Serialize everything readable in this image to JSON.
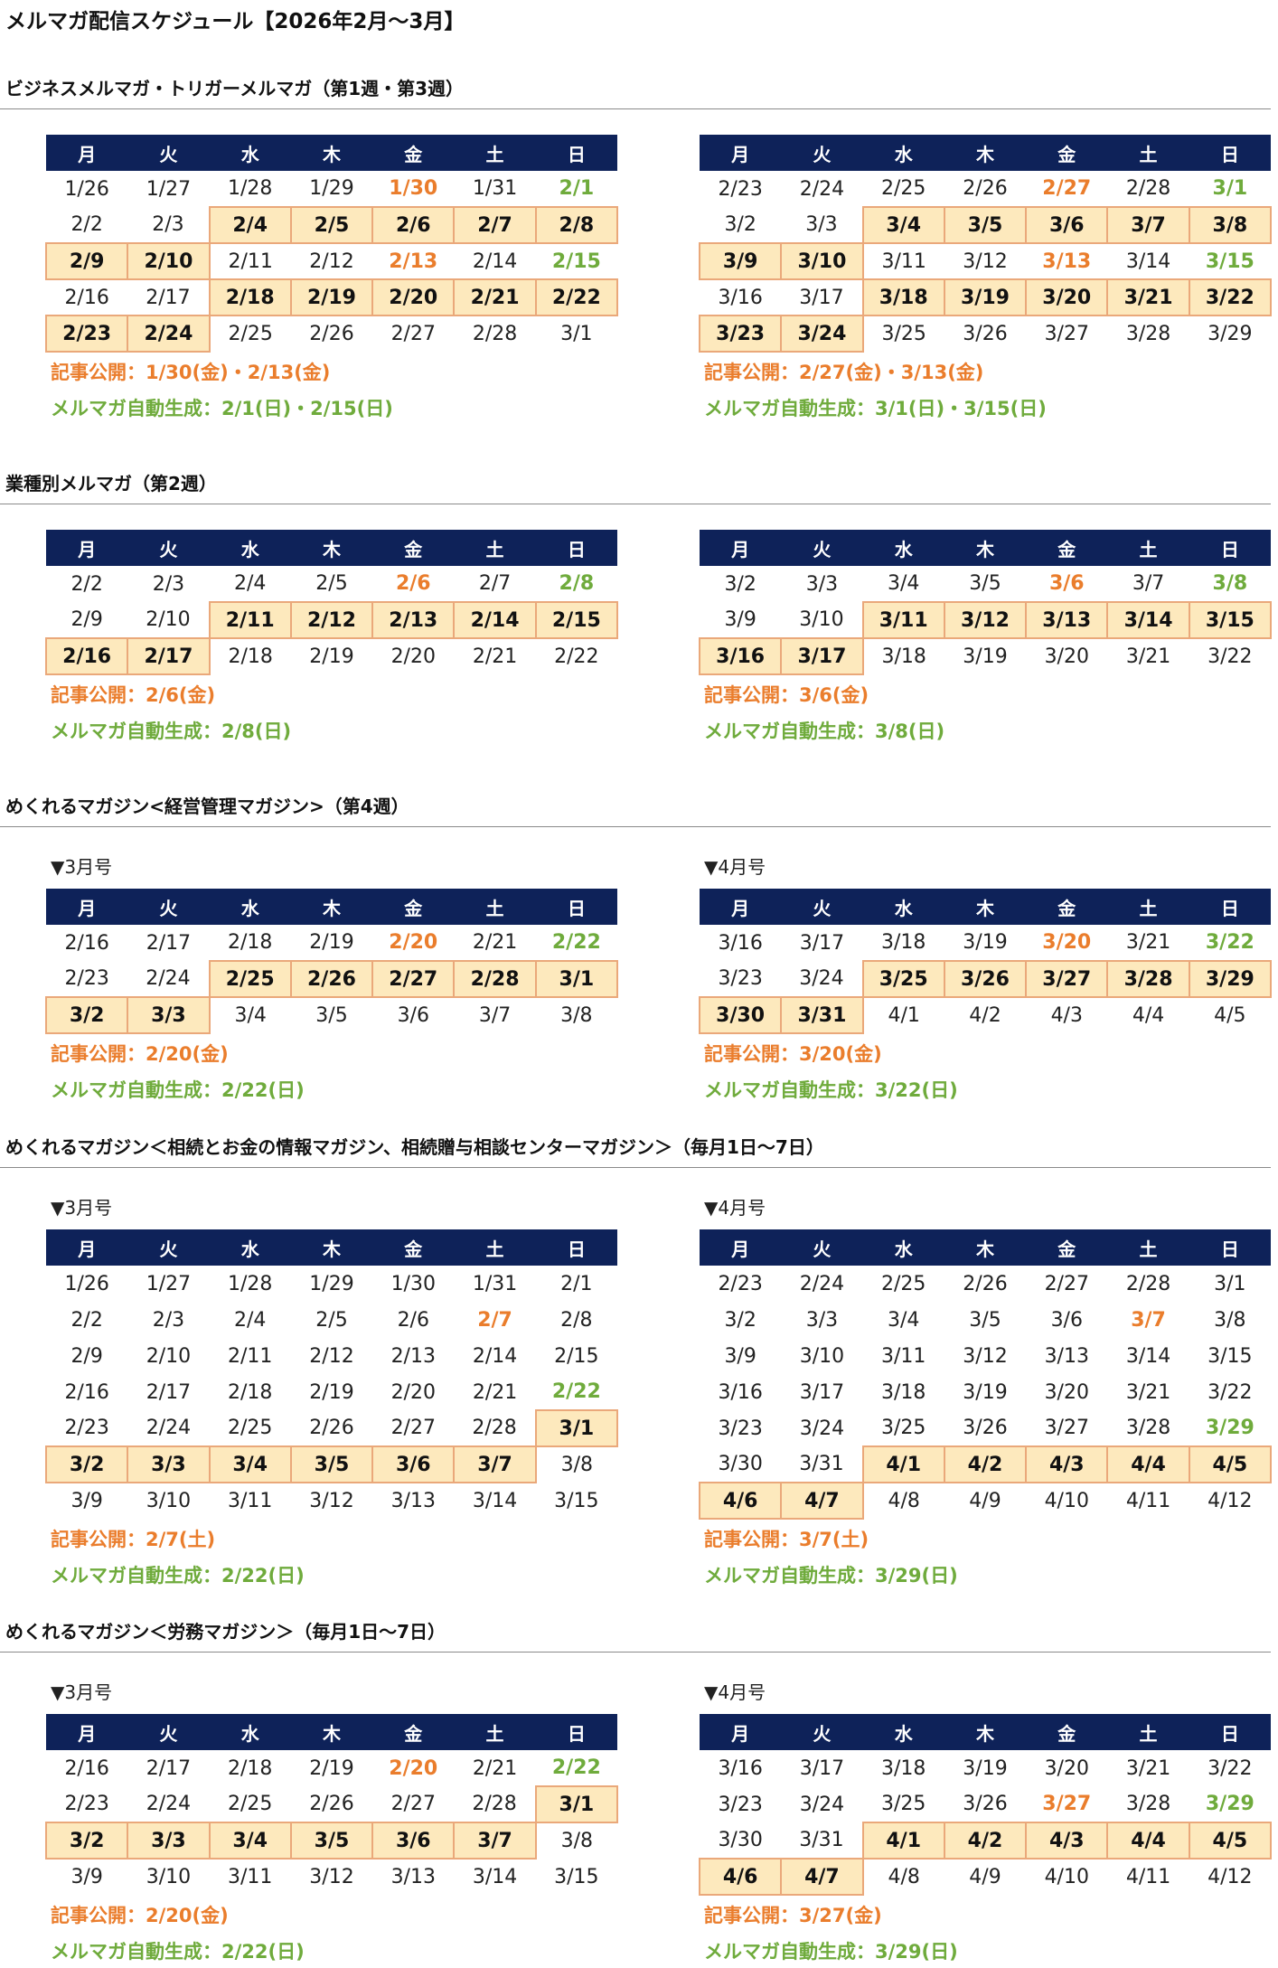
{
  "page_title": "メルマガ配信スケジュール【2026年2月～3月】",
  "weekday_headers": [
    "月",
    "火",
    "水",
    "木",
    "金",
    "土",
    "日"
  ],
  "colors": {
    "header_bg": "#0e2259",
    "highlight_bg": "#fde9bd",
    "highlight_border": "#eaa87a",
    "publish": "#ea7d2c",
    "generate": "#6fab3c"
  },
  "sections": [
    {
      "title": "ビジネスメルマガ・トリガーメルマガ（第1週・第3週）",
      "calendars": [
        {
          "label": "",
          "rows": [
            [
              "1/26",
              "1/27",
              "1/28",
              "1/29",
              "1/30",
              "1/31",
              "2/1"
            ],
            [
              "2/2",
              "2/3",
              "2/4",
              "2/5",
              "2/6",
              "2/7",
              "2/8"
            ],
            [
              "2/9",
              "2/10",
              "2/11",
              "2/12",
              "2/13",
              "2/14",
              "2/15"
            ],
            [
              "2/16",
              "2/17",
              "2/18",
              "2/19",
              "2/20",
              "2/21",
              "2/22"
            ],
            [
              "2/23",
              "2/24",
              "2/25",
              "2/26",
              "2/27",
              "2/28",
              "3/1"
            ]
          ],
          "highlighted": [
            "2/4",
            "2/5",
            "2/6",
            "2/7",
            "2/8",
            "2/9",
            "2/10",
            "2/18",
            "2/19",
            "2/20",
            "2/21",
            "2/22",
            "2/23",
            "2/24"
          ],
          "publish_dates": [
            "1/30",
            "2/13"
          ],
          "generate_dates": [
            "2/1",
            "2/15"
          ],
          "publish_note": "記事公開：1/30(金)・2/13(金)",
          "generate_note": "メルマガ自動生成：2/1(日)・2/15(日)"
        },
        {
          "label": "",
          "rows": [
            [
              "2/23",
              "2/24",
              "2/25",
              "2/26",
              "2/27",
              "2/28",
              "3/1"
            ],
            [
              "3/2",
              "3/3",
              "3/4",
              "3/5",
              "3/6",
              "3/7",
              "3/8"
            ],
            [
              "3/9",
              "3/10",
              "3/11",
              "3/12",
              "3/13",
              "3/14",
              "3/15"
            ],
            [
              "3/16",
              "3/17",
              "3/18",
              "3/19",
              "3/20",
              "3/21",
              "3/22"
            ],
            [
              "3/23",
              "3/24",
              "3/25",
              "3/26",
              "3/27",
              "3/28",
              "3/29"
            ]
          ],
          "highlighted": [
            "3/4",
            "3/5",
            "3/6",
            "3/7",
            "3/8",
            "3/9",
            "3/10",
            "3/18",
            "3/19",
            "3/20",
            "3/21",
            "3/22",
            "3/23",
            "3/24"
          ],
          "publish_dates": [
            "2/27",
            "3/13"
          ],
          "generate_dates": [
            "3/1",
            "3/15"
          ],
          "publish_note": "記事公開：2/27(金)・3/13(金)",
          "generate_note": "メルマガ自動生成：3/1(日)・3/15(日)"
        }
      ]
    },
    {
      "title": "業種別メルマガ（第2週）",
      "calendars": [
        {
          "label": "",
          "rows": [
            [
              "2/2",
              "2/3",
              "2/4",
              "2/5",
              "2/6",
              "2/7",
              "2/8"
            ],
            [
              "2/9",
              "2/10",
              "2/11",
              "2/12",
              "2/13",
              "2/14",
              "2/15"
            ],
            [
              "2/16",
              "2/17",
              "2/18",
              "2/19",
              "2/20",
              "2/21",
              "2/22"
            ]
          ],
          "highlighted": [
            "2/11",
            "2/12",
            "2/13",
            "2/14",
            "2/15",
            "2/16",
            "2/17"
          ],
          "publish_dates": [
            "2/6"
          ],
          "generate_dates": [
            "2/8"
          ],
          "publish_note": "記事公開：2/6(金)",
          "generate_note": "メルマガ自動生成：2/8(日)"
        },
        {
          "label": "",
          "rows": [
            [
              "3/2",
              "3/3",
              "3/4",
              "3/5",
              "3/6",
              "3/7",
              "3/8"
            ],
            [
              "3/9",
              "3/10",
              "3/11",
              "3/12",
              "3/13",
              "3/14",
              "3/15"
            ],
            [
              "3/16",
              "3/17",
              "3/18",
              "3/19",
              "3/20",
              "3/21",
              "3/22"
            ]
          ],
          "highlighted": [
            "3/11",
            "3/12",
            "3/13",
            "3/14",
            "3/15",
            "3/16",
            "3/17"
          ],
          "publish_dates": [
            "3/6"
          ],
          "generate_dates": [
            "3/8"
          ],
          "publish_note": "記事公開：3/6(金)",
          "generate_note": "メルマガ自動生成：3/8(日)"
        }
      ]
    },
    {
      "title": "めくれるマガジン<経営管理マガジン>（第4週）",
      "calendars": [
        {
          "label": "▼3月号",
          "rows": [
            [
              "2/16",
              "2/17",
              "2/18",
              "2/19",
              "2/20",
              "2/21",
              "2/22"
            ],
            [
              "2/23",
              "2/24",
              "2/25",
              "2/26",
              "2/27",
              "2/28",
              "3/1"
            ],
            [
              "3/2",
              "3/3",
              "3/4",
              "3/5",
              "3/6",
              "3/7",
              "3/8"
            ]
          ],
          "highlighted": [
            "2/25",
            "2/26",
            "2/27",
            "2/28",
            "3/1",
            "3/2",
            "3/3"
          ],
          "publish_dates": [
            "2/20"
          ],
          "generate_dates": [
            "2/22"
          ],
          "publish_note": "記事公開：2/20(金)",
          "generate_note": "メルマガ自動生成：2/22(日)"
        },
        {
          "label": "▼4月号",
          "rows": [
            [
              "3/16",
              "3/17",
              "3/18",
              "3/19",
              "3/20",
              "3/21",
              "3/22"
            ],
            [
              "3/23",
              "3/24",
              "3/25",
              "3/26",
              "3/27",
              "3/28",
              "3/29"
            ],
            [
              "3/30",
              "3/31",
              "4/1",
              "4/2",
              "4/3",
              "4/4",
              "4/5"
            ]
          ],
          "highlighted": [
            "3/25",
            "3/26",
            "3/27",
            "3/28",
            "3/29",
            "3/30",
            "3/31"
          ],
          "publish_dates": [
            "3/20"
          ],
          "generate_dates": [
            "3/22"
          ],
          "publish_note": "記事公開：3/20(金)",
          "generate_note": "メルマガ自動生成：3/22(日)"
        }
      ]
    },
    {
      "title": "めくれるマガジン＜相続とお金の情報マガジン、相続贈与相談センターマガジン＞（毎月1日～7日）",
      "calendars": [
        {
          "label": "▼3月号",
          "rows": [
            [
              "1/26",
              "1/27",
              "1/28",
              "1/29",
              "1/30",
              "1/31",
              "2/1"
            ],
            [
              "2/2",
              "2/3",
              "2/4",
              "2/5",
              "2/6",
              "2/7",
              "2/8"
            ],
            [
              "2/9",
              "2/10",
              "2/11",
              "2/12",
              "2/13",
              "2/14",
              "2/15"
            ],
            [
              "2/16",
              "2/17",
              "2/18",
              "2/19",
              "2/20",
              "2/21",
              "2/22"
            ],
            [
              "2/23",
              "2/24",
              "2/25",
              "2/26",
              "2/27",
              "2/28",
              "3/1"
            ],
            [
              "3/2",
              "3/3",
              "3/4",
              "3/5",
              "3/6",
              "3/7",
              "3/8"
            ],
            [
              "3/9",
              "3/10",
              "3/11",
              "3/12",
              "3/13",
              "3/14",
              "3/15"
            ]
          ],
          "highlighted": [
            "3/1",
            "3/2",
            "3/3",
            "3/4",
            "3/5",
            "3/6",
            "3/7"
          ],
          "publish_dates": [
            "2/7"
          ],
          "generate_dates": [
            "2/22"
          ],
          "publish_note": "記事公開：2/7(土)",
          "generate_note": "メルマガ自動生成：2/22(日)"
        },
        {
          "label": "▼4月号",
          "rows": [
            [
              "2/23",
              "2/24",
              "2/25",
              "2/26",
              "2/27",
              "2/28",
              "3/1"
            ],
            [
              "3/2",
              "3/3",
              "3/4",
              "3/5",
              "3/6",
              "3/7",
              "3/8"
            ],
            [
              "3/9",
              "3/10",
              "3/11",
              "3/12",
              "3/13",
              "3/14",
              "3/15"
            ],
            [
              "3/16",
              "3/17",
              "3/18",
              "3/19",
              "3/20",
              "3/21",
              "3/22"
            ],
            [
              "3/23",
              "3/24",
              "3/25",
              "3/26",
              "3/27",
              "3/28",
              "3/29"
            ],
            [
              "3/30",
              "3/31",
              "4/1",
              "4/2",
              "4/3",
              "4/4",
              "4/5"
            ],
            [
              "4/6",
              "4/7",
              "4/8",
              "4/9",
              "4/10",
              "4/11",
              "4/12"
            ]
          ],
          "highlighted": [
            "4/1",
            "4/2",
            "4/3",
            "4/4",
            "4/5",
            "4/6",
            "4/7"
          ],
          "publish_dates": [
            "3/7"
          ],
          "generate_dates": [
            "3/29"
          ],
          "publish_note": "記事公開：3/7(土)",
          "generate_note": "メルマガ自動生成：3/29(日)"
        }
      ]
    },
    {
      "title": "めくれるマガジン＜労務マガジン＞（毎月1日～7日）",
      "calendars": [
        {
          "label": "▼3月号",
          "rows": [
            [
              "2/16",
              "2/17",
              "2/18",
              "2/19",
              "2/20",
              "2/21",
              "2/22"
            ],
            [
              "2/23",
              "2/24",
              "2/25",
              "2/26",
              "2/27",
              "2/28",
              "3/1"
            ],
            [
              "3/2",
              "3/3",
              "3/4",
              "3/5",
              "3/6",
              "3/7",
              "3/8"
            ],
            [
              "3/9",
              "3/10",
              "3/11",
              "3/12",
              "3/13",
              "3/14",
              "3/15"
            ]
          ],
          "highlighted": [
            "3/1",
            "3/2",
            "3/3",
            "3/4",
            "3/5",
            "3/6",
            "3/7"
          ],
          "publish_dates": [
            "2/20"
          ],
          "generate_dates": [
            "2/22"
          ],
          "publish_note": "記事公開：2/20(金)",
          "generate_note": "メルマガ自動生成：2/22(日)"
        },
        {
          "label": "▼4月号",
          "rows": [
            [
              "3/16",
              "3/17",
              "3/18",
              "3/19",
              "3/20",
              "3/21",
              "3/22"
            ],
            [
              "3/23",
              "3/24",
              "3/25",
              "3/26",
              "3/27",
              "3/28",
              "3/29"
            ],
            [
              "3/30",
              "3/31",
              "4/1",
              "4/2",
              "4/3",
              "4/4",
              "4/5"
            ],
            [
              "4/6",
              "4/7",
              "4/8",
              "4/9",
              "4/10",
              "4/11",
              "4/12"
            ]
          ],
          "highlighted": [
            "4/1",
            "4/2",
            "4/3",
            "4/4",
            "4/5",
            "4/6",
            "4/7"
          ],
          "publish_dates": [
            "3/27"
          ],
          "generate_dates": [
            "3/29"
          ],
          "publish_note": "記事公開：3/27(金)",
          "generate_note": "メルマガ自動生成：3/29(日)"
        }
      ]
    }
  ]
}
